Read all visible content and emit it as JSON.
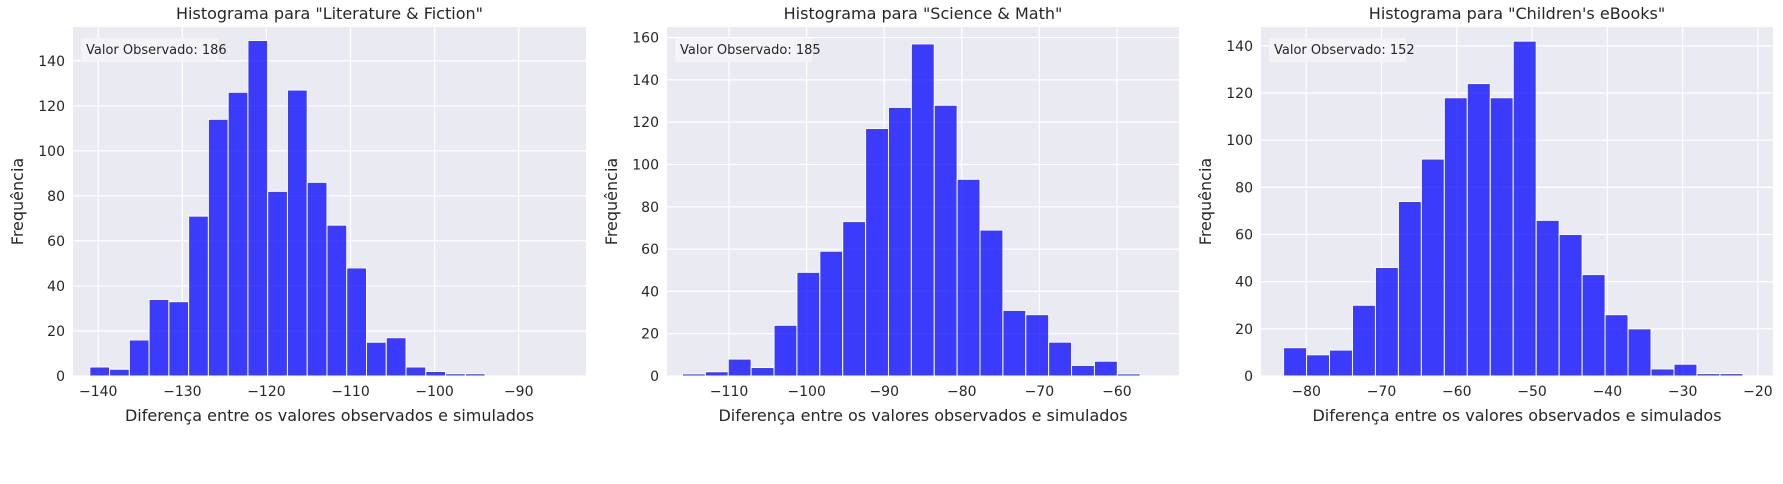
{
  "chart_data": [
    {
      "type": "bar",
      "title": "Histograma para \"Literature & Fiction\"",
      "xlabel": "Diferença entre os valores observados e simulados",
      "ylabel": "Frequência",
      "annotation": "Valor Observado: 186",
      "xlim": [
        -143,
        -82
      ],
      "ylim": [
        0,
        155
      ],
      "xticks": [
        -140,
        -130,
        -120,
        -110,
        -100,
        -90
      ],
      "yticks": [
        0,
        20,
        40,
        60,
        80,
        100,
        120,
        140
      ],
      "bin_start": -141,
      "bin_width": 2.35,
      "values": [
        4,
        3,
        16,
        34,
        33,
        71,
        114,
        126,
        149,
        82,
        127,
        86,
        67,
        48,
        15,
        17,
        4,
        2,
        1,
        1
      ],
      "color": "#0000ff",
      "background": "#eaeaf2",
      "grid": true
    },
    {
      "type": "bar",
      "title": "Histograma para \"Science & Math\"",
      "xlabel": "Diferença entre os valores observados e simulados",
      "ylabel": "Frequência",
      "annotation": "Valor Observado: 185",
      "xlim": [
        -118,
        -52
      ],
      "ylim": [
        0,
        165
      ],
      "xticks": [
        -110,
        -100,
        -90,
        -80,
        -70,
        -60
      ],
      "yticks": [
        0,
        20,
        40,
        60,
        80,
        100,
        120,
        140,
        160
      ],
      "bin_start": -116,
      "bin_width": 2.95,
      "values": [
        1,
        2,
        8,
        4,
        24,
        49,
        59,
        73,
        117,
        127,
        157,
        128,
        93,
        69,
        31,
        29,
        16,
        5,
        7,
        1
      ],
      "color": "#0000ff",
      "background": "#eaeaf2",
      "grid": true
    },
    {
      "type": "bar",
      "title": "Histograma para \"Children's eBooks\"",
      "xlabel": "Diferença entre os valores observados e simulados",
      "ylabel": "Frequência",
      "annotation": "Valor Observado: 152",
      "xlim": [
        -86,
        -18
      ],
      "ylim": [
        0,
        148
      ],
      "xticks": [
        -80,
        -70,
        -60,
        -50,
        -40,
        -30,
        -20
      ],
      "yticks": [
        0,
        20,
        40,
        60,
        80,
        100,
        120,
        140
      ],
      "bin_start": -83,
      "bin_width": 3.05,
      "values": [
        12,
        9,
        11,
        30,
        46,
        74,
        92,
        118,
        124,
        118,
        142,
        66,
        60,
        43,
        26,
        20,
        3,
        5,
        1,
        1
      ],
      "color": "#0000ff",
      "background": "#eaeaf2",
      "grid": true
    }
  ]
}
